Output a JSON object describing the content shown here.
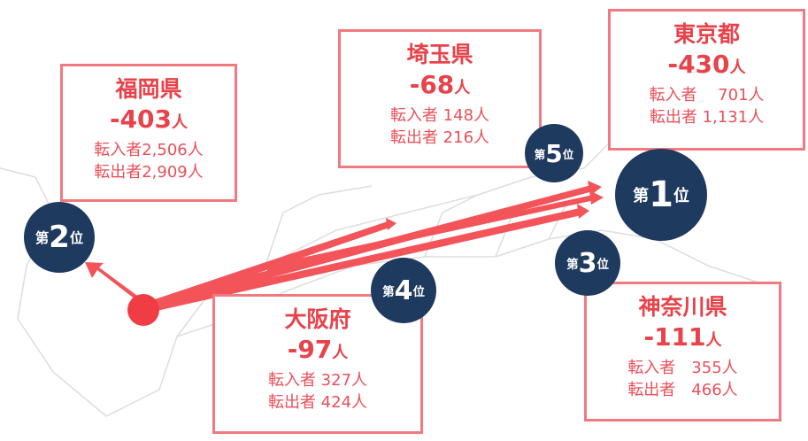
{
  "boxes": [
    {
      "name": "福岡県",
      "net": "-403",
      "unit": "人",
      "lines": [
        "転入者2,506人",
        "転出者2,909人"
      ]
    },
    {
      "name": "埼玉県",
      "net": "-68",
      "unit": "人",
      "lines": [
        "転入者 148人",
        "転出者 216人"
      ]
    },
    {
      "name": "東京都",
      "net": "-430",
      "unit": "人",
      "lines": [
        "転入者　 701人",
        "転出者 1,131人"
      ]
    },
    {
      "name": "大阪府",
      "net": "-97",
      "unit": "人",
      "lines": [
        "転入者 327人",
        "転出者 424人"
      ]
    },
    {
      "name": "神奈川県",
      "net": "-111",
      "unit": "人",
      "lines": [
        "転入者　355人",
        "転出者　466人"
      ]
    }
  ],
  "ranks": [
    {
      "pre": "第",
      "num": "2",
      "post": "位"
    },
    {
      "pre": "第",
      "num": "5",
      "post": "位"
    },
    {
      "pre": "第",
      "num": "1",
      "post": "位"
    },
    {
      "pre": "第",
      "num": "4",
      "post": "位"
    },
    {
      "pre": "第",
      "num": "3",
      "post": "位"
    }
  ]
}
